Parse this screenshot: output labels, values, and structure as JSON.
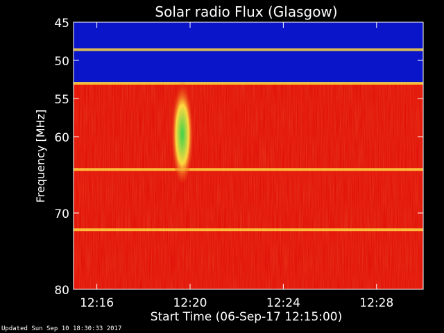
{
  "chart_data": {
    "type": "heatmap",
    "title": "Solar radio Flux (Glasgow)",
    "xlabel": "Start Time (06-Sep-17 12:15:00)",
    "ylabel": "Frequency [MHz]",
    "x_range": [
      "12:15:00",
      "12:30:00"
    ],
    "y_range": [
      45,
      80
    ],
    "y_inverted": true,
    "y_ticks": [
      45,
      50,
      55,
      60,
      70,
      80
    ],
    "x_ticks": [
      "12:16",
      "12:20",
      "12:24",
      "12:28"
    ],
    "grid": false,
    "colors": {
      "background": "#000000",
      "low": "#0a14c8",
      "mid": "#e21208",
      "high": "#ffd840",
      "peak": "#39d24a"
    },
    "frequency_bands": [
      {
        "from_mhz": 45,
        "to_mhz": 53,
        "level": "low"
      },
      {
        "from_mhz": 53,
        "to_mhz": 80,
        "level": "mid"
      }
    ],
    "interference_lines_mhz": [
      48.6,
      53.0,
      64.3,
      72.2
    ],
    "burst": {
      "start_time": "12:19:10",
      "end_time": "12:20:10",
      "freq_from_mhz": 52,
      "freq_to_mhz": 66,
      "peak_level": "peak"
    }
  },
  "footer": {
    "updated": "Updated Sun Sep 10 18:30:33 2017"
  }
}
